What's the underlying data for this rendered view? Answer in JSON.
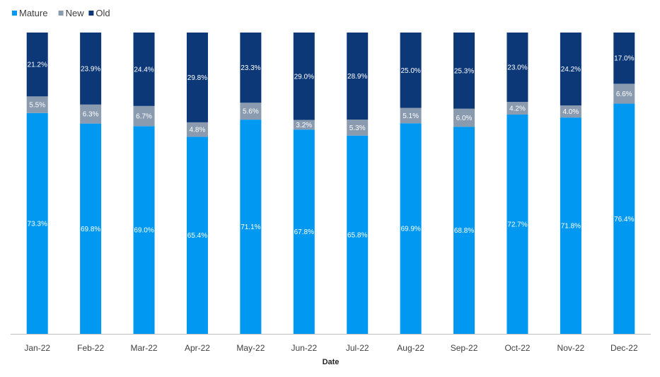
{
  "chart_data": {
    "type": "bar",
    "stacked": true,
    "normalized": true,
    "xlabel": "Date",
    "ylabel": "",
    "ylim": [
      0,
      100
    ],
    "grid": false,
    "legend_position": "top-left",
    "categories": [
      "Jan-22",
      "Feb-22",
      "Mar-22",
      "Apr-22",
      "May-22",
      "Jun-22",
      "Jul-22",
      "Aug-22",
      "Sep-22",
      "Oct-22",
      "Nov-22",
      "Dec-22"
    ],
    "series": [
      {
        "name": "Mature",
        "color": "#0098F0",
        "values": [
          73.3,
          69.8,
          69.0,
          65.4,
          71.1,
          67.8,
          65.8,
          69.9,
          68.8,
          72.7,
          71.8,
          76.4
        ],
        "labels": [
          "73.3%",
          "69.8%",
          "69.0%",
          "65.4%",
          "71.1%",
          "67.8%",
          "65.8%",
          "69.9%",
          "68.8%",
          "72.7%",
          "71.8%",
          "76.4%"
        ]
      },
      {
        "name": "New",
        "color": "#8A9BB0",
        "values": [
          5.5,
          6.3,
          6.7,
          4.8,
          5.6,
          3.2,
          5.3,
          5.1,
          6.0,
          4.2,
          4.0,
          6.6
        ],
        "labels": [
          "5.5%",
          "6.3%",
          "6.7%",
          "4.8%",
          "5.6%",
          "3.2%",
          "5.3%",
          "5.1%",
          "6.0%",
          "4.2%",
          "4.0%",
          "6.6%"
        ]
      },
      {
        "name": "Old",
        "color": "#0D3878",
        "values": [
          21.2,
          23.9,
          24.4,
          29.8,
          23.3,
          29.0,
          28.9,
          25.0,
          25.3,
          23.0,
          24.2,
          17.0
        ],
        "labels": [
          "21.2%",
          "23.9%",
          "24.4%",
          "29.8%",
          "23.3%",
          "29.0%",
          "28.9%",
          "25.0%",
          "25.3%",
          "23.0%",
          "24.2%",
          "17.0%"
        ]
      }
    ]
  },
  "colors": {
    "axis": "#BFBFBF"
  }
}
